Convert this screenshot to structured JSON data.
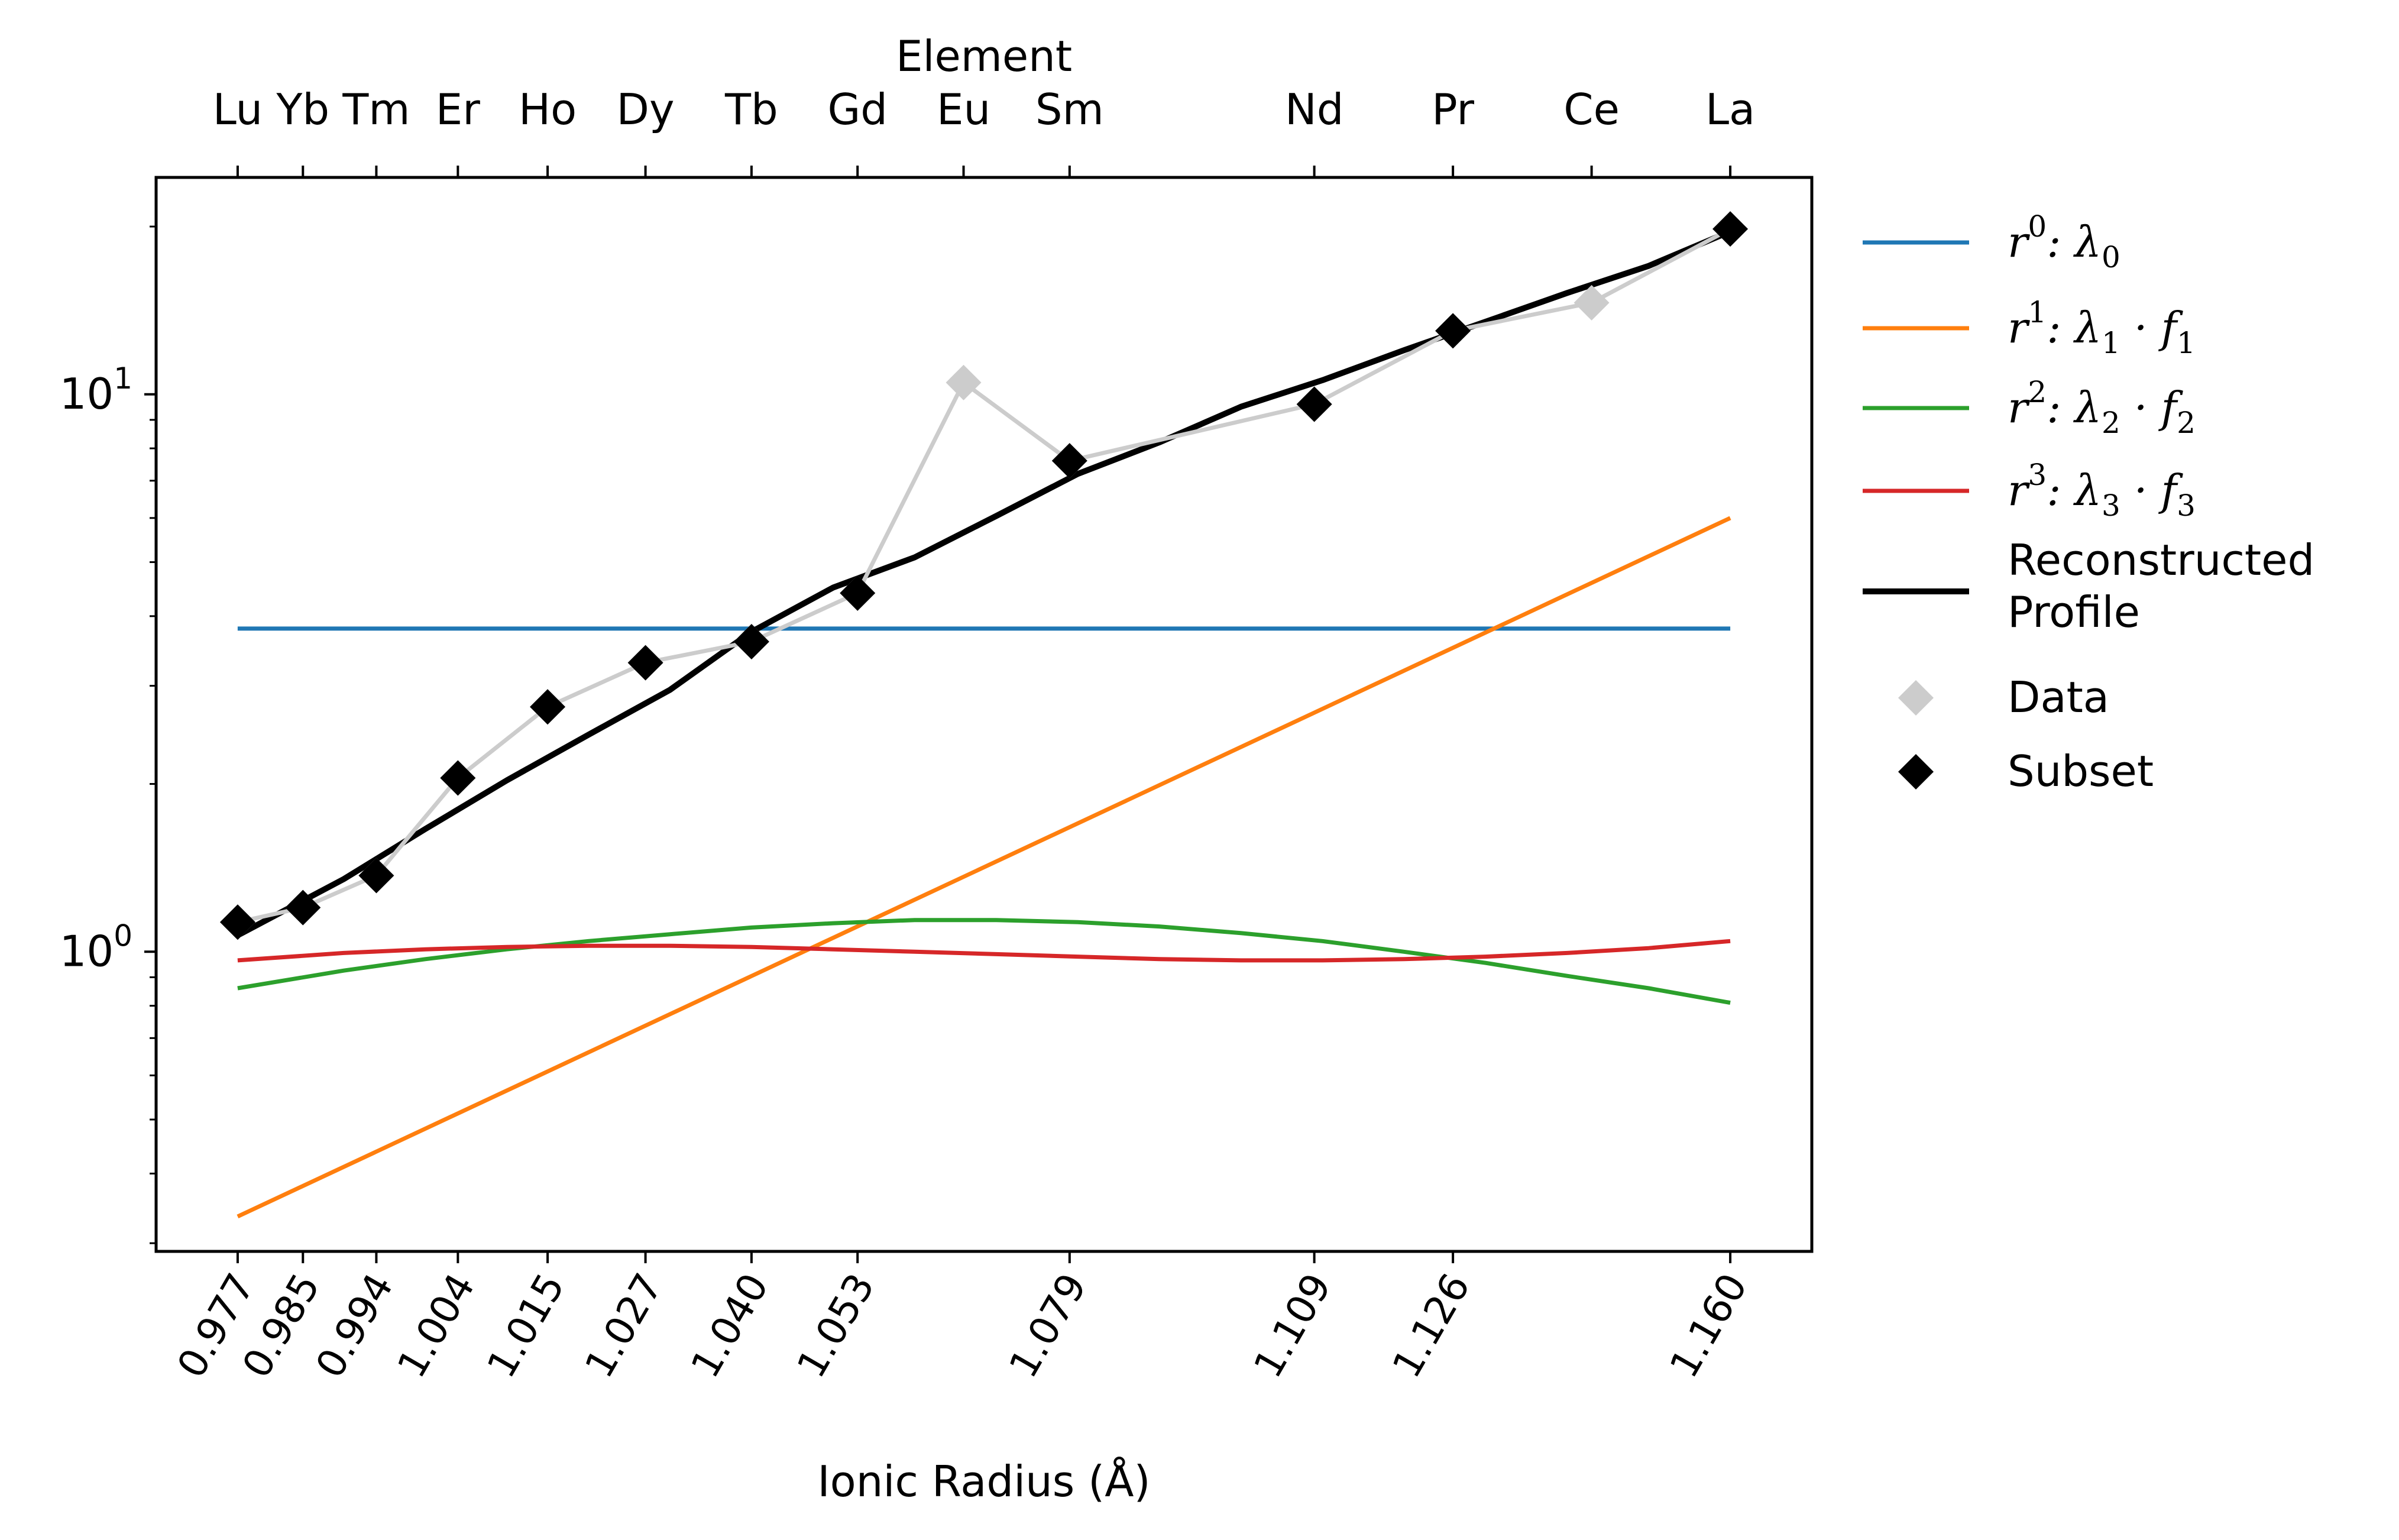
{
  "chart_data": {
    "type": "line",
    "xlabel": "Ionic Radius (Å)",
    "top_axis_label": "Element",
    "x_ticks": [
      0.977,
      0.985,
      0.994,
      1.004,
      1.015,
      1.027,
      1.04,
      1.053,
      1.079,
      1.109,
      1.126,
      1.16
    ],
    "x_tick_labels": [
      "0.977",
      "0.985",
      "0.994",
      "1.004",
      "1.015",
      "1.027",
      "1.040",
      "1.053",
      "1.079",
      "1.109",
      "1.126",
      "1.160"
    ],
    "top_ticks": [
      {
        "label": "Lu",
        "x": 0.977
      },
      {
        "label": "Yb",
        "x": 0.985
      },
      {
        "label": "Tm",
        "x": 0.994
      },
      {
        "label": "Er",
        "x": 1.004
      },
      {
        "label": "Ho",
        "x": 1.015
      },
      {
        "label": "Dy",
        "x": 1.027
      },
      {
        "label": "Tb",
        "x": 1.04
      },
      {
        "label": "Gd",
        "x": 1.053
      },
      {
        "label": "Eu",
        "x": 1.066
      },
      {
        "label": "Sm",
        "x": 1.079
      },
      {
        "label": "Nd",
        "x": 1.109
      },
      {
        "label": "Pr",
        "x": 1.126
      },
      {
        "label": "Ce",
        "x": 1.143
      },
      {
        "label": "La",
        "x": 1.16
      }
    ],
    "xlim": [
      0.967,
      1.17
    ],
    "yscale": "log",
    "ylim": [
      0.29,
      24.5
    ],
    "y_major_ticks": [
      {
        "value": 1,
        "base": "10",
        "exp": "0"
      },
      {
        "value": 10,
        "base": "10",
        "exp": "1"
      }
    ],
    "y_minor_ticks": [
      0.3,
      0.4,
      0.5,
      0.6,
      0.7,
      0.8,
      0.9,
      2,
      3,
      4,
      5,
      6,
      7,
      8,
      9,
      20
    ],
    "grid": false,
    "legend_position": "outside-right",
    "series": [
      {
        "key": "r0",
        "legend": {
          "base": "r",
          "exp": "0",
          "rest": ": λ",
          "sub": "0",
          "tail": ""
        },
        "color": "#1f77b4",
        "style": "line",
        "x": [
          0.977,
          1.16
        ],
        "y": [
          3.8,
          3.8
        ]
      },
      {
        "key": "r1",
        "legend": {
          "base": "r",
          "exp": "1",
          "rest": ": λ",
          "sub": "1",
          "tail": "· f",
          "tailsub": "1"
        },
        "color": "#ff7f0e",
        "style": "line",
        "x": [
          0.977,
          1.16
        ],
        "y": [
          0.335,
          6.0
        ]
      },
      {
        "key": "r2",
        "legend": {
          "base": "r",
          "exp": "2",
          "rest": ": λ",
          "sub": "2",
          "tail": "· f",
          "tailsub": "2"
        },
        "color": "#2ca02c",
        "style": "line",
        "x": [
          0.977,
          0.99,
          1.0,
          1.01,
          1.02,
          1.03,
          1.04,
          1.05,
          1.06,
          1.07,
          1.08,
          1.09,
          1.1,
          1.11,
          1.12,
          1.13,
          1.14,
          1.15,
          1.16
        ],
        "y": [
          0.86,
          0.925,
          0.97,
          1.01,
          1.045,
          1.075,
          1.105,
          1.125,
          1.14,
          1.14,
          1.13,
          1.11,
          1.08,
          1.045,
          1.0,
          0.955,
          0.905,
          0.86,
          0.81
        ]
      },
      {
        "key": "r3",
        "legend": {
          "base": "r",
          "exp": "3",
          "rest": ": λ",
          "sub": "3",
          "tail": "· f",
          "tailsub": "3"
        },
        "color": "#d62728",
        "style": "line",
        "x": [
          0.977,
          0.99,
          1.0,
          1.01,
          1.02,
          1.03,
          1.04,
          1.05,
          1.06,
          1.07,
          1.08,
          1.09,
          1.1,
          1.11,
          1.12,
          1.13,
          1.14,
          1.15,
          1.16
        ],
        "y": [
          0.965,
          0.995,
          1.01,
          1.02,
          1.025,
          1.025,
          1.02,
          1.01,
          1.0,
          0.99,
          0.98,
          0.97,
          0.965,
          0.965,
          0.97,
          0.98,
          0.995,
          1.015,
          1.045
        ]
      },
      {
        "key": "recon",
        "legend": {
          "text": "Reconstructed Profile",
          "lines": [
            "Reconstructed",
            "Profile"
          ]
        },
        "color": "#000000",
        "style": "thick-line",
        "x": [
          0.977,
          0.99,
          1.0,
          1.01,
          1.02,
          1.03,
          1.04,
          1.05,
          1.06,
          1.07,
          1.08,
          1.09,
          1.1,
          1.11,
          1.12,
          1.13,
          1.14,
          1.15,
          1.16
        ],
        "y": [
          1.07,
          1.35,
          1.66,
          2.03,
          2.45,
          2.95,
          3.75,
          4.5,
          5.1,
          6.05,
          7.2,
          8.2,
          9.5,
          10.6,
          12.0,
          13.5,
          15.2,
          17.0,
          19.6
        ]
      },
      {
        "key": "data",
        "legend": {
          "text": "Data"
        },
        "color": "#cccccc",
        "style": "diamond-line",
        "x": [
          0.977,
          0.985,
          0.994,
          1.004,
          1.015,
          1.027,
          1.04,
          1.053,
          1.066,
          1.079,
          1.109,
          1.126,
          1.143,
          1.16
        ],
        "y": [
          1.13,
          1.2,
          1.37,
          2.05,
          2.75,
          3.3,
          3.6,
          4.4,
          10.5,
          7.6,
          9.6,
          13.0,
          14.6,
          19.8
        ]
      },
      {
        "key": "subset",
        "legend": {
          "text": "Subset"
        },
        "color": "#000000",
        "style": "diamond",
        "x": [
          0.977,
          0.985,
          0.994,
          1.004,
          1.015,
          1.027,
          1.04,
          1.053,
          1.079,
          1.109,
          1.126,
          1.16
        ],
        "y": [
          1.13,
          1.2,
          1.37,
          2.05,
          2.75,
          3.3,
          3.6,
          4.4,
          7.6,
          9.6,
          13.0,
          19.8
        ]
      }
    ]
  }
}
